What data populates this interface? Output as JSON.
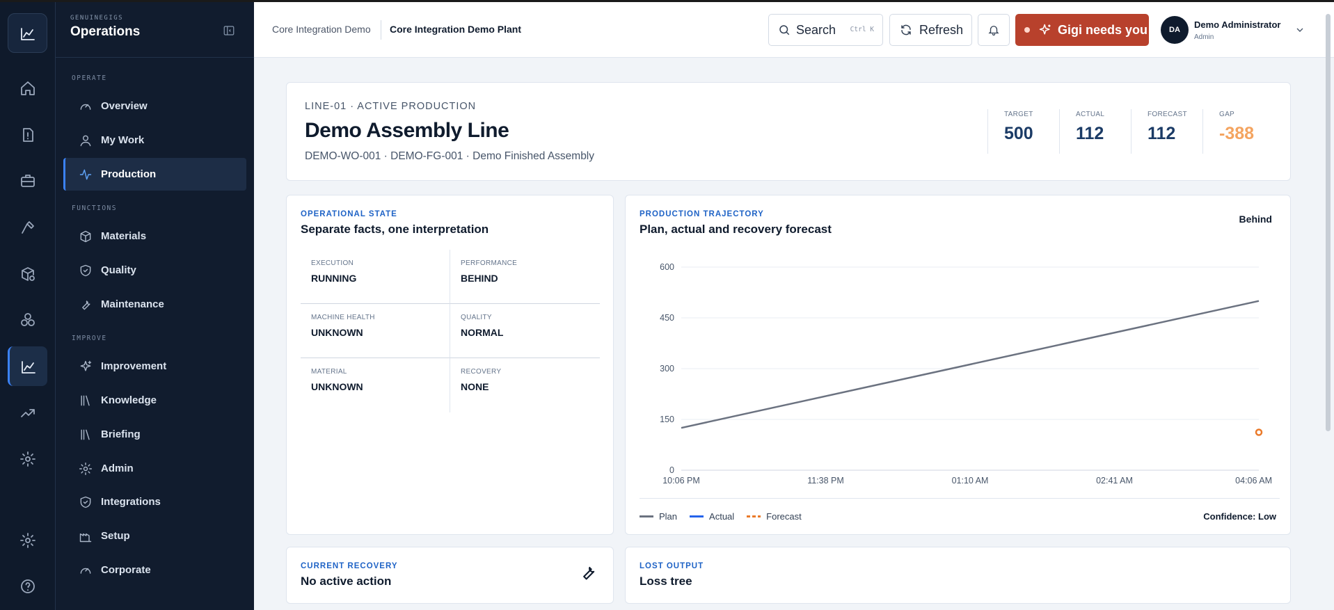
{
  "brand": {
    "small": "GENUINEGIGS",
    "title": "Operations"
  },
  "nav": {
    "sections": {
      "operate": "OPERATE",
      "functions": "FUNCTIONS",
      "improve": "IMPROVE"
    },
    "items": [
      {
        "label": "Overview",
        "icon": "gauge-icon"
      },
      {
        "label": "My Work",
        "icon": "user-icon"
      },
      {
        "label": "Production",
        "icon": "activity-icon",
        "active": true
      },
      {
        "label": "Materials",
        "icon": "package-icon"
      },
      {
        "label": "Quality",
        "icon": "shield-check-icon"
      },
      {
        "label": "Maintenance",
        "icon": "wrench-icon"
      },
      {
        "label": "Improvement",
        "icon": "sparkles-icon"
      },
      {
        "label": "Knowledge",
        "icon": "library-icon"
      },
      {
        "label": "Briefing",
        "icon": "library-icon"
      },
      {
        "label": "Admin",
        "icon": "gear-icon"
      },
      {
        "label": "Integrations",
        "icon": "shield-icon"
      },
      {
        "label": "Setup",
        "icon": "factory-icon"
      },
      {
        "label": "Corporate",
        "icon": "gauge-icon"
      }
    ]
  },
  "header": {
    "breadcrumb_parent": "Core Integration Demo",
    "breadcrumb_current": "Core Integration Demo Plant",
    "search_label": "Search",
    "search_shortcut": "Ctrl K",
    "refresh_label": "Refresh",
    "alert_label": "Gigi needs you",
    "user_initials": "DA",
    "user_name": "Demo Administrator",
    "user_role": "Admin"
  },
  "hero": {
    "tag": "LINE-01 · ACTIVE PRODUCTION",
    "title": "Demo Assembly Line",
    "subtitle": "DEMO-WO-001 · DEMO-FG-001 · Demo Finished Assembly",
    "kpis": [
      {
        "label": "TARGET",
        "value": "500"
      },
      {
        "label": "ACTUAL",
        "value": "112"
      },
      {
        "label": "FORECAST",
        "value": "112"
      },
      {
        "label": "GAP",
        "value": "-388"
      }
    ]
  },
  "operational_state": {
    "eyebrow": "OPERATIONAL STATE",
    "title": "Separate facts, one interpretation",
    "cells": [
      {
        "label": "EXECUTION",
        "value": "RUNNING"
      },
      {
        "label": "PERFORMANCE",
        "value": "BEHIND"
      },
      {
        "label": "MACHINE HEALTH",
        "value": "UNKNOWN"
      },
      {
        "label": "QUALITY",
        "value": "NORMAL"
      },
      {
        "label": "MATERIAL",
        "value": "UNKNOWN"
      },
      {
        "label": "RECOVERY",
        "value": "NONE"
      }
    ]
  },
  "trajectory": {
    "eyebrow": "PRODUCTION TRAJECTORY",
    "title": "Plan, actual and recovery forecast",
    "status": "Behind",
    "confidence": "Confidence: Low",
    "legend": [
      "Plan",
      "Actual",
      "Forecast"
    ],
    "colors": {
      "plan": "#6b7280",
      "actual": "#2563eb",
      "forecast": "#ea7a2a"
    }
  },
  "chart_data": {
    "type": "line",
    "x_ticks": [
      "10:06 PM",
      "11:38 PM",
      "01:10 AM",
      "02:41 AM",
      "04:06 AM"
    ],
    "y_ticks": [
      0,
      150,
      300,
      450,
      600
    ],
    "ylim": [
      0,
      600
    ],
    "series": [
      {
        "name": "Plan",
        "points": [
          [
            "10:06 PM",
            125
          ],
          [
            "04:06 AM",
            500
          ]
        ]
      },
      {
        "name": "Actual",
        "points": []
      },
      {
        "name": "Forecast",
        "points": [
          [
            "04:06 AM",
            112
          ]
        ]
      }
    ],
    "grid": true,
    "legend_position": "bottom-left"
  },
  "recovery": {
    "eyebrow": "CURRENT RECOVERY",
    "title": "No active action"
  },
  "lost_output": {
    "eyebrow": "LOST OUTPUT",
    "title": "Loss tree"
  }
}
